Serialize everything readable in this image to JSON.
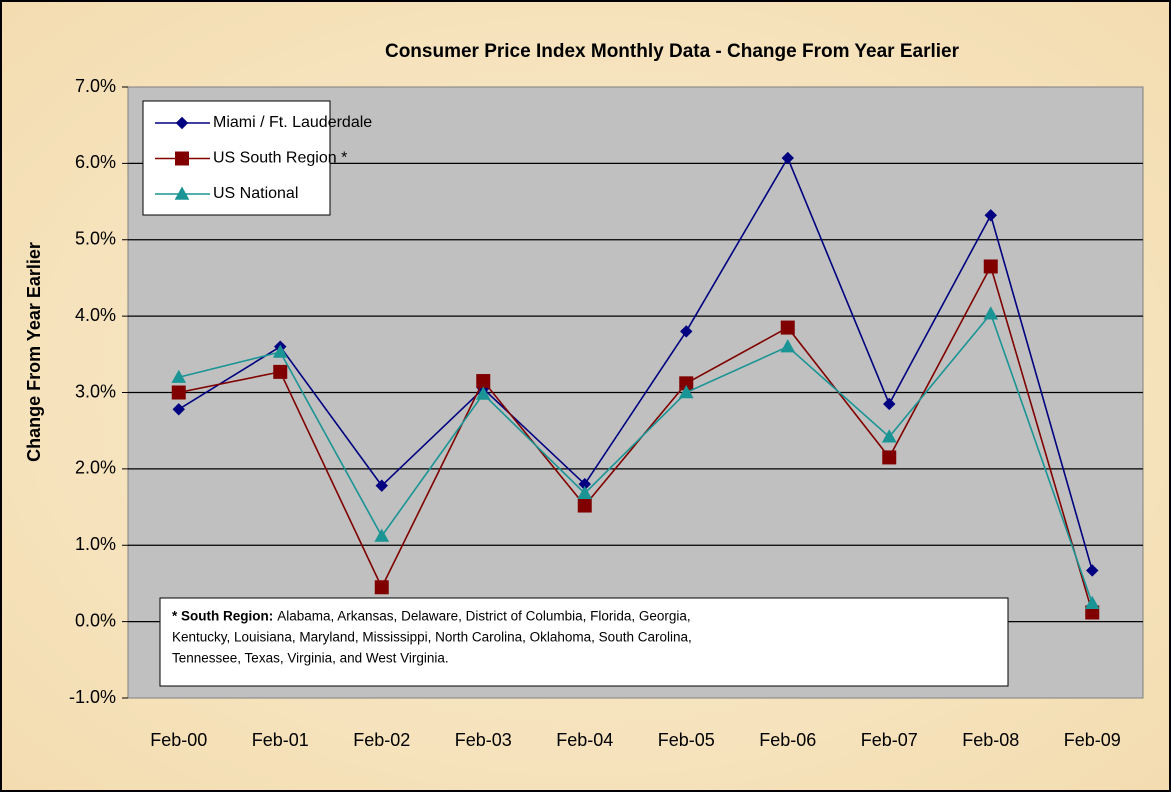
{
  "chart_data": {
    "type": "line",
    "title": "Consumer Price Index Monthly Data  - Change From Year Earlier",
    "y_label": "Change From Year Earlier",
    "categories": [
      "Feb-00",
      "Feb-01",
      "Feb-02",
      "Feb-03",
      "Feb-04",
      "Feb-05",
      "Feb-06",
      "Feb-07",
      "Feb-08",
      "Feb-09"
    ],
    "series": [
      {
        "name": "Miami / Ft. Lauderdale",
        "color": "#000080",
        "marker": "diamond",
        "values": [
          2.78,
          3.6,
          1.78,
          3.05,
          1.8,
          3.8,
          6.07,
          2.85,
          5.32,
          0.67
        ]
      },
      {
        "name": "US South Region *",
        "color": "#800000",
        "marker": "square",
        "values": [
          3.0,
          3.27,
          0.45,
          3.15,
          1.52,
          3.12,
          3.85,
          2.15,
          4.65,
          0.12
        ]
      },
      {
        "name": "US National",
        "color": "#1a9494",
        "marker": "triangle",
        "values": [
          3.2,
          3.53,
          1.12,
          2.98,
          1.68,
          3.0,
          3.6,
          2.42,
          4.03,
          0.24
        ]
      }
    ],
    "ylim": [
      -1,
      7
    ],
    "yticks": [
      {
        "value": -1,
        "label": "-1.0%"
      },
      {
        "value": 0,
        "label": "0.0%"
      },
      {
        "value": 1,
        "label": "1.0%"
      },
      {
        "value": 2,
        "label": "2.0%"
      },
      {
        "value": 3,
        "label": "3.0%"
      },
      {
        "value": 4,
        "label": "4.0%"
      },
      {
        "value": 5,
        "label": "5.0%"
      },
      {
        "value": 6,
        "label": "6.0%"
      },
      {
        "value": 7,
        "label": "7.0%"
      }
    ],
    "grid": true,
    "legend": "top-left",
    "note": {
      "label": "* South Region:",
      "lines": [
        "Alabama, Arkansas, Delaware, District of Columbia, Florida, Georgia,",
        "Kentucky, Louisiana, Maryland, Mississippi, North Carolina, Oklahoma, South Carolina,",
        "Tennessee, Texas,  Virginia, and West Virginia."
      ]
    }
  }
}
